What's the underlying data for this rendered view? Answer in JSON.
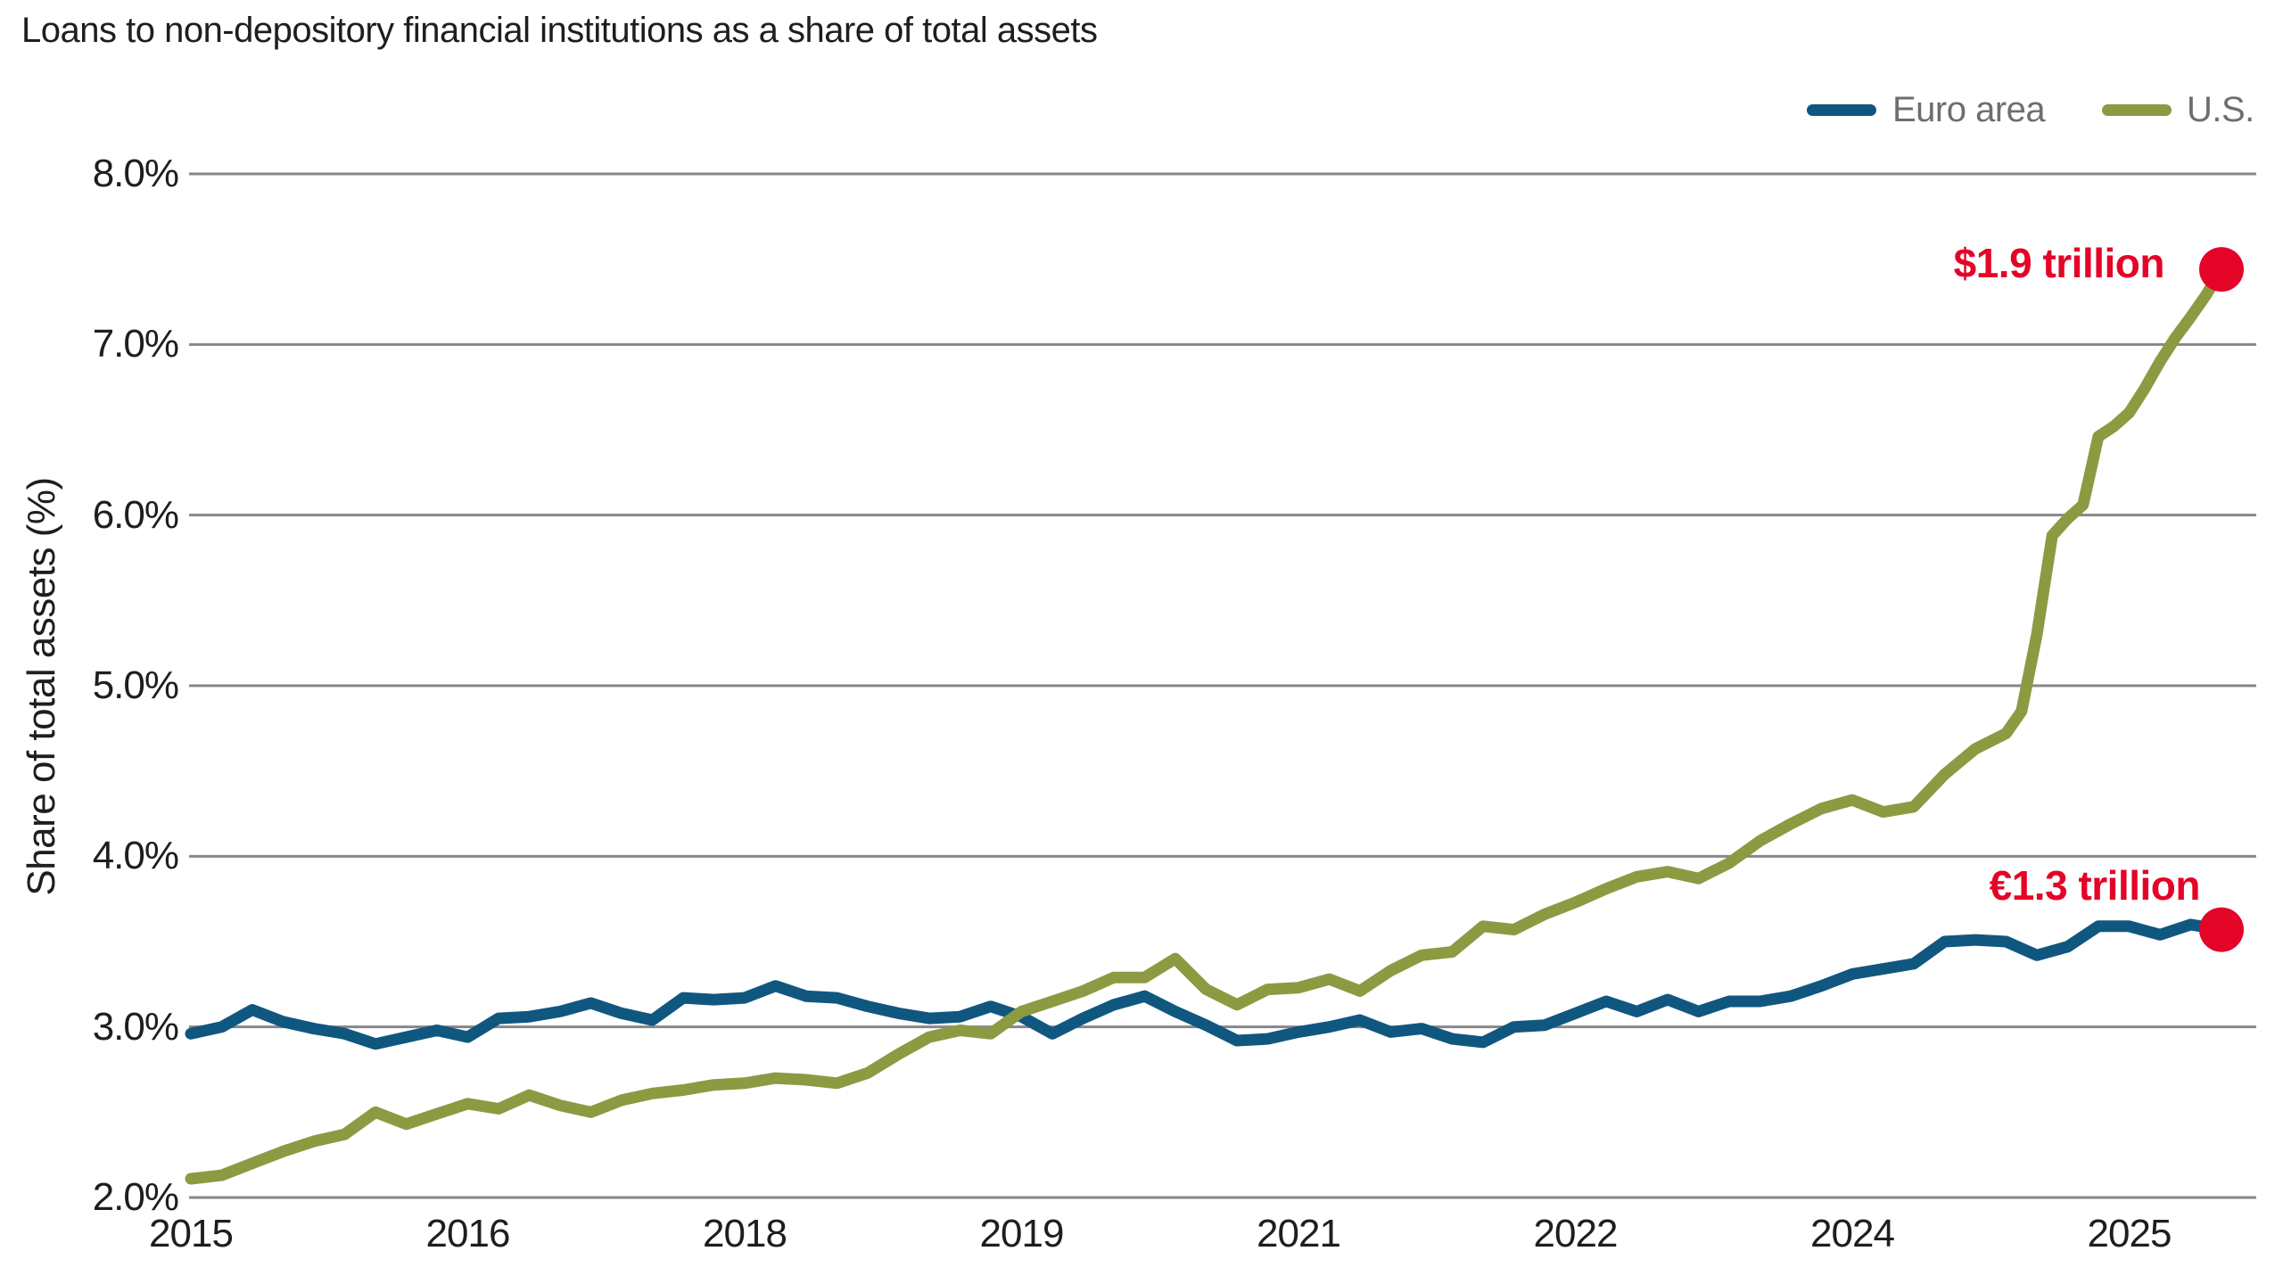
{
  "chart": {
    "title": "Loans to non-depository financial institutions as a share of total assets",
    "y_axis_title": "Share of total assets (%)"
  },
  "chart_data": {
    "type": "line",
    "title": "Loans to non-depository financial institutions as a share of total assets",
    "xlabel": "",
    "ylabel": "Share of total assets (%)",
    "ylim": [
      2.0,
      8.0
    ],
    "grid": "horizontal-only",
    "legend_position": "top-right",
    "y_ticks": [
      {
        "value": 8.0,
        "label": "8.0%"
      },
      {
        "value": 7.0,
        "label": "7.0%"
      },
      {
        "value": 6.0,
        "label": "6.0%"
      },
      {
        "value": 5.0,
        "label": "5.0%"
      },
      {
        "value": 4.0,
        "label": "4.0%"
      },
      {
        "value": 3.0,
        "label": "3.0%"
      },
      {
        "value": 2.0,
        "label": "2.0%"
      }
    ],
    "x_ticks": [
      {
        "t": 2015.0,
        "label": "2015"
      },
      {
        "t": 2016.5,
        "label": "2016"
      },
      {
        "t": 2018.0,
        "label": "2018"
      },
      {
        "t": 2019.5,
        "label": "2019"
      },
      {
        "t": 2021.0,
        "label": "2021"
      },
      {
        "t": 2022.5,
        "label": "2022"
      },
      {
        "t": 2024.0,
        "label": "2024"
      },
      {
        "t": 2025.5,
        "label": "2025"
      }
    ],
    "colors": {
      "euro_area": "#105780",
      "us": "#8C9A42",
      "annotation_red": "#E40428",
      "gridline": "#85878A",
      "legend_text": "#6D6E71",
      "axis_text": "#1E1E1C"
    },
    "series": [
      {
        "name": "Euro area",
        "color": "#105780",
        "end_label": "€1.3 trillion",
        "end_value_pct": 3.57,
        "points": [
          [
            2015.0,
            2.96
          ],
          [
            2015.167,
            3.0
          ],
          [
            2015.333,
            3.1
          ],
          [
            2015.5,
            3.03
          ],
          [
            2015.667,
            2.99
          ],
          [
            2015.833,
            2.96
          ],
          [
            2016.0,
            2.9
          ],
          [
            2016.167,
            2.94
          ],
          [
            2016.333,
            2.98
          ],
          [
            2016.5,
            2.94
          ],
          [
            2016.667,
            3.05
          ],
          [
            2016.833,
            3.06
          ],
          [
            2017.0,
            3.09
          ],
          [
            2017.167,
            3.14
          ],
          [
            2017.333,
            3.08
          ],
          [
            2017.5,
            3.04
          ],
          [
            2017.667,
            3.17
          ],
          [
            2017.833,
            3.16
          ],
          [
            2018.0,
            3.17
          ],
          [
            2018.167,
            3.24
          ],
          [
            2018.333,
            3.18
          ],
          [
            2018.5,
            3.17
          ],
          [
            2018.667,
            3.12
          ],
          [
            2018.833,
            3.08
          ],
          [
            2019.0,
            3.05
          ],
          [
            2019.167,
            3.06
          ],
          [
            2019.333,
            3.12
          ],
          [
            2019.5,
            3.06
          ],
          [
            2019.667,
            2.96
          ],
          [
            2019.833,
            3.05
          ],
          [
            2020.0,
            3.13
          ],
          [
            2020.167,
            3.18
          ],
          [
            2020.333,
            3.09
          ],
          [
            2020.5,
            3.01
          ],
          [
            2020.667,
            2.92
          ],
          [
            2020.833,
            2.93
          ],
          [
            2021.0,
            2.97
          ],
          [
            2021.167,
            3.0
          ],
          [
            2021.333,
            3.04
          ],
          [
            2021.5,
            2.97
          ],
          [
            2021.667,
            2.99
          ],
          [
            2021.833,
            2.93
          ],
          [
            2022.0,
            2.91
          ],
          [
            2022.167,
            3.0
          ],
          [
            2022.333,
            3.01
          ],
          [
            2022.5,
            3.08
          ],
          [
            2022.667,
            3.15
          ],
          [
            2022.833,
            3.09
          ],
          [
            2023.0,
            3.16
          ],
          [
            2023.167,
            3.09
          ],
          [
            2023.333,
            3.15
          ],
          [
            2023.5,
            3.15
          ],
          [
            2023.667,
            3.18
          ],
          [
            2023.833,
            3.24
          ],
          [
            2024.0,
            3.31
          ],
          [
            2024.167,
            3.34
          ],
          [
            2024.333,
            3.37
          ],
          [
            2024.5,
            3.5
          ],
          [
            2024.667,
            3.51
          ],
          [
            2024.833,
            3.5
          ],
          [
            2025.0,
            3.42
          ],
          [
            2025.167,
            3.47
          ],
          [
            2025.333,
            3.59
          ],
          [
            2025.5,
            3.59
          ],
          [
            2025.667,
            3.54
          ],
          [
            2025.833,
            3.6
          ],
          [
            2026.0,
            3.57
          ]
        ]
      },
      {
        "name": "U.S.",
        "color": "#8C9A42",
        "end_label": "$1.9 trillion",
        "end_value_pct": 7.44,
        "points": [
          [
            2015.0,
            2.11
          ],
          [
            2015.167,
            2.13
          ],
          [
            2015.333,
            2.2
          ],
          [
            2015.5,
            2.27
          ],
          [
            2015.667,
            2.33
          ],
          [
            2015.833,
            2.37
          ],
          [
            2016.0,
            2.5
          ],
          [
            2016.167,
            2.43
          ],
          [
            2016.333,
            2.49
          ],
          [
            2016.5,
            2.55
          ],
          [
            2016.667,
            2.52
          ],
          [
            2016.833,
            2.6
          ],
          [
            2017.0,
            2.54
          ],
          [
            2017.167,
            2.5
          ],
          [
            2017.333,
            2.57
          ],
          [
            2017.5,
            2.61
          ],
          [
            2017.667,
            2.63
          ],
          [
            2017.833,
            2.66
          ],
          [
            2018.0,
            2.67
          ],
          [
            2018.167,
            2.7
          ],
          [
            2018.333,
            2.69
          ],
          [
            2018.5,
            2.67
          ],
          [
            2018.667,
            2.73
          ],
          [
            2018.833,
            2.84
          ],
          [
            2019.0,
            2.94
          ],
          [
            2019.167,
            2.98
          ],
          [
            2019.333,
            2.96
          ],
          [
            2019.5,
            3.09
          ],
          [
            2019.667,
            3.15
          ],
          [
            2019.833,
            3.21
          ],
          [
            2020.0,
            3.29
          ],
          [
            2020.167,
            3.29
          ],
          [
            2020.333,
            3.4
          ],
          [
            2020.5,
            3.22
          ],
          [
            2020.667,
            3.13
          ],
          [
            2020.833,
            3.22
          ],
          [
            2021.0,
            3.23
          ],
          [
            2021.167,
            3.28
          ],
          [
            2021.333,
            3.21
          ],
          [
            2021.5,
            3.33
          ],
          [
            2021.667,
            3.42
          ],
          [
            2021.833,
            3.44
          ],
          [
            2022.0,
            3.59
          ],
          [
            2022.167,
            3.57
          ],
          [
            2022.333,
            3.66
          ],
          [
            2022.5,
            3.73
          ],
          [
            2022.667,
            3.81
          ],
          [
            2022.833,
            3.88
          ],
          [
            2023.0,
            3.91
          ],
          [
            2023.167,
            3.87
          ],
          [
            2023.333,
            3.96
          ],
          [
            2023.5,
            4.09
          ],
          [
            2023.667,
            4.19
          ],
          [
            2023.833,
            4.28
          ],
          [
            2024.0,
            4.33
          ],
          [
            2024.167,
            4.26
          ],
          [
            2024.333,
            4.29
          ],
          [
            2024.5,
            4.48
          ],
          [
            2024.667,
            4.63
          ],
          [
            2024.833,
            4.72
          ],
          [
            2024.917,
            4.85
          ],
          [
            2025.0,
            5.3
          ],
          [
            2025.083,
            5.88
          ],
          [
            2025.167,
            5.98
          ],
          [
            2025.25,
            6.06
          ],
          [
            2025.333,
            6.46
          ],
          [
            2025.417,
            6.52
          ],
          [
            2025.5,
            6.6
          ],
          [
            2025.583,
            6.74
          ],
          [
            2025.667,
            6.9
          ],
          [
            2025.75,
            7.04
          ],
          [
            2025.833,
            7.16
          ],
          [
            2025.917,
            7.29
          ],
          [
            2026.0,
            7.44
          ]
        ]
      }
    ]
  },
  "layout_note": "x axis linear in time; tick labels show year of each 1.5-year interval"
}
